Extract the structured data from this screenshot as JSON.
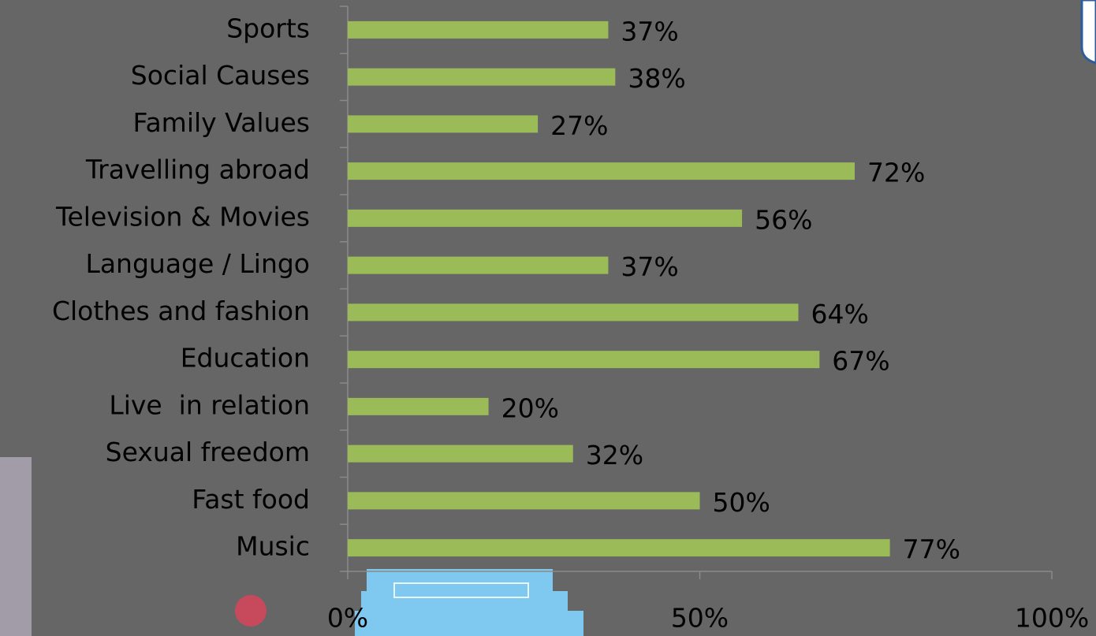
{
  "chart_data": {
    "type": "bar",
    "orientation": "horizontal",
    "categories": [
      "Sports",
      "Social Causes",
      "Family Values",
      "Travelling abroad",
      "Television & Movies",
      "Language / Lingo",
      "Clothes and fashion",
      "Education",
      "Live  in relation",
      "Sexual freedom",
      "Fast food",
      "Music"
    ],
    "values": [
      37,
      38,
      27,
      72,
      56,
      37,
      64,
      67,
      20,
      32,
      50,
      77
    ],
    "value_labels": [
      "37%",
      "38%",
      "27%",
      "72%",
      "56%",
      "37%",
      "64%",
      "67%",
      "20%",
      "32%",
      "50%",
      "77%"
    ],
    "color": "#9bbb59",
    "xlim": [
      0,
      100
    ],
    "xticks": [
      {
        "value": 0,
        "label": "0%"
      },
      {
        "value": 50,
        "label": "50%"
      },
      {
        "value": 100,
        "label": "100%"
      }
    ]
  }
}
